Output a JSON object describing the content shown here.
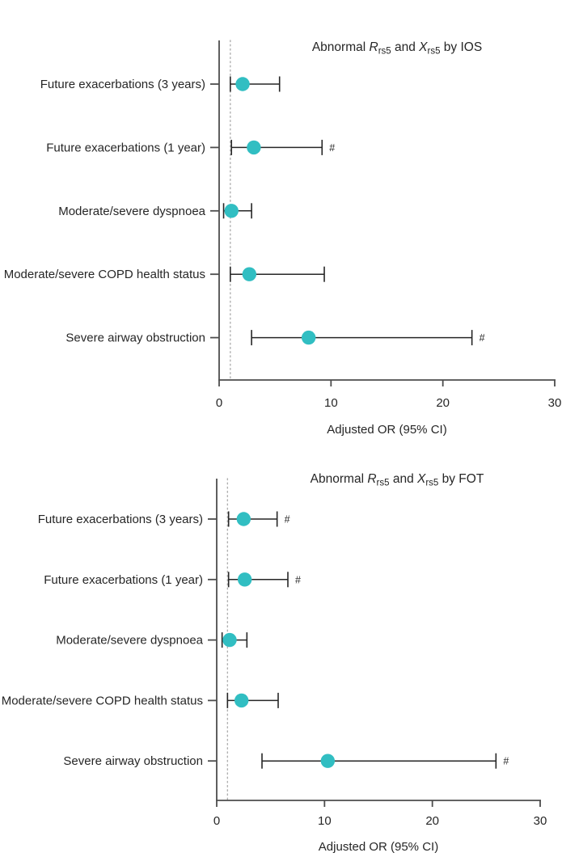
{
  "figure": {
    "background": "#ffffff"
  },
  "colors": {
    "marker": "#31bec2",
    "axis": "#4d4d4d",
    "error_bar": "#262626",
    "text": "#262626",
    "reference_line": "#b0b0b0"
  },
  "chart_data": [
    {
      "type": "scatter",
      "subtype": "forest-plot",
      "id": "ios",
      "title": "Abnormal Rrs5 and Xrs5 by IOS",
      "title_parts": [
        {
          "text": "Abnormal ",
          "style": "normal"
        },
        {
          "text": "R",
          "style": "italic"
        },
        {
          "text": "rs5",
          "style": "sub"
        },
        {
          "text": " and ",
          "style": "normal"
        },
        {
          "text": "X",
          "style": "italic"
        },
        {
          "text": "rs5",
          "style": "sub"
        },
        {
          "text": " by IOS",
          "style": "normal"
        }
      ],
      "xlabel": "Adjusted OR (95% CI)",
      "x_ticks": [
        0,
        10,
        20,
        30
      ],
      "xlim": [
        0,
        30
      ],
      "reference_line": 1,
      "grid": false,
      "points": [
        {
          "label": "Future exacerbations (3 years)",
          "or": 2.1,
          "ci_low": 1.0,
          "ci_high": 5.4,
          "significance": ""
        },
        {
          "label": "Future exacerbations (1 year)",
          "or": 3.1,
          "ci_low": 1.1,
          "ci_high": 9.2,
          "significance": "#"
        },
        {
          "label": "Moderate/severe dyspnoea",
          "or": 1.1,
          "ci_low": 0.4,
          "ci_high": 2.9,
          "significance": ""
        },
        {
          "label": "Moderate/severe COPD health status",
          "or": 2.7,
          "ci_low": 1.0,
          "ci_high": 9.4,
          "significance": ""
        },
        {
          "label": "Severe airway obstruction",
          "or": 8.0,
          "ci_low": 2.9,
          "ci_high": 22.6,
          "significance": "#"
        }
      ]
    },
    {
      "type": "scatter",
      "subtype": "forest-plot",
      "id": "fot",
      "title": "Abnormal Rrs5 and Xrs5 by FOT",
      "title_parts": [
        {
          "text": "Abnormal ",
          "style": "normal"
        },
        {
          "text": "R",
          "style": "italic"
        },
        {
          "text": "rs5",
          "style": "sub"
        },
        {
          "text": " and ",
          "style": "normal"
        },
        {
          "text": "X",
          "style": "italic"
        },
        {
          "text": "rs5",
          "style": "sub"
        },
        {
          "text": " by FOT",
          "style": "normal"
        }
      ],
      "xlabel": "Adjusted OR (95% CI)",
      "x_ticks": [
        0,
        10,
        20,
        30
      ],
      "xlim": [
        0,
        30
      ],
      "reference_line": 1,
      "grid": false,
      "points": [
        {
          "label": "Future exacerbations (3 years)",
          "or": 2.5,
          "ci_low": 1.1,
          "ci_high": 5.6,
          "significance": "#"
        },
        {
          "label": "Future exacerbations (1 year)",
          "or": 2.6,
          "ci_low": 1.1,
          "ci_high": 6.6,
          "significance": "#"
        },
        {
          "label": "Moderate/severe dyspnoea",
          "or": 1.2,
          "ci_low": 0.5,
          "ci_high": 2.8,
          "significance": ""
        },
        {
          "label": "Moderate/severe COPD health status",
          "or": 2.3,
          "ci_low": 1.0,
          "ci_high": 5.7,
          "significance": ""
        },
        {
          "label": "Severe airway obstruction",
          "or": 10.3,
          "ci_low": 4.2,
          "ci_high": 25.9,
          "significance": "#"
        }
      ]
    }
  ]
}
